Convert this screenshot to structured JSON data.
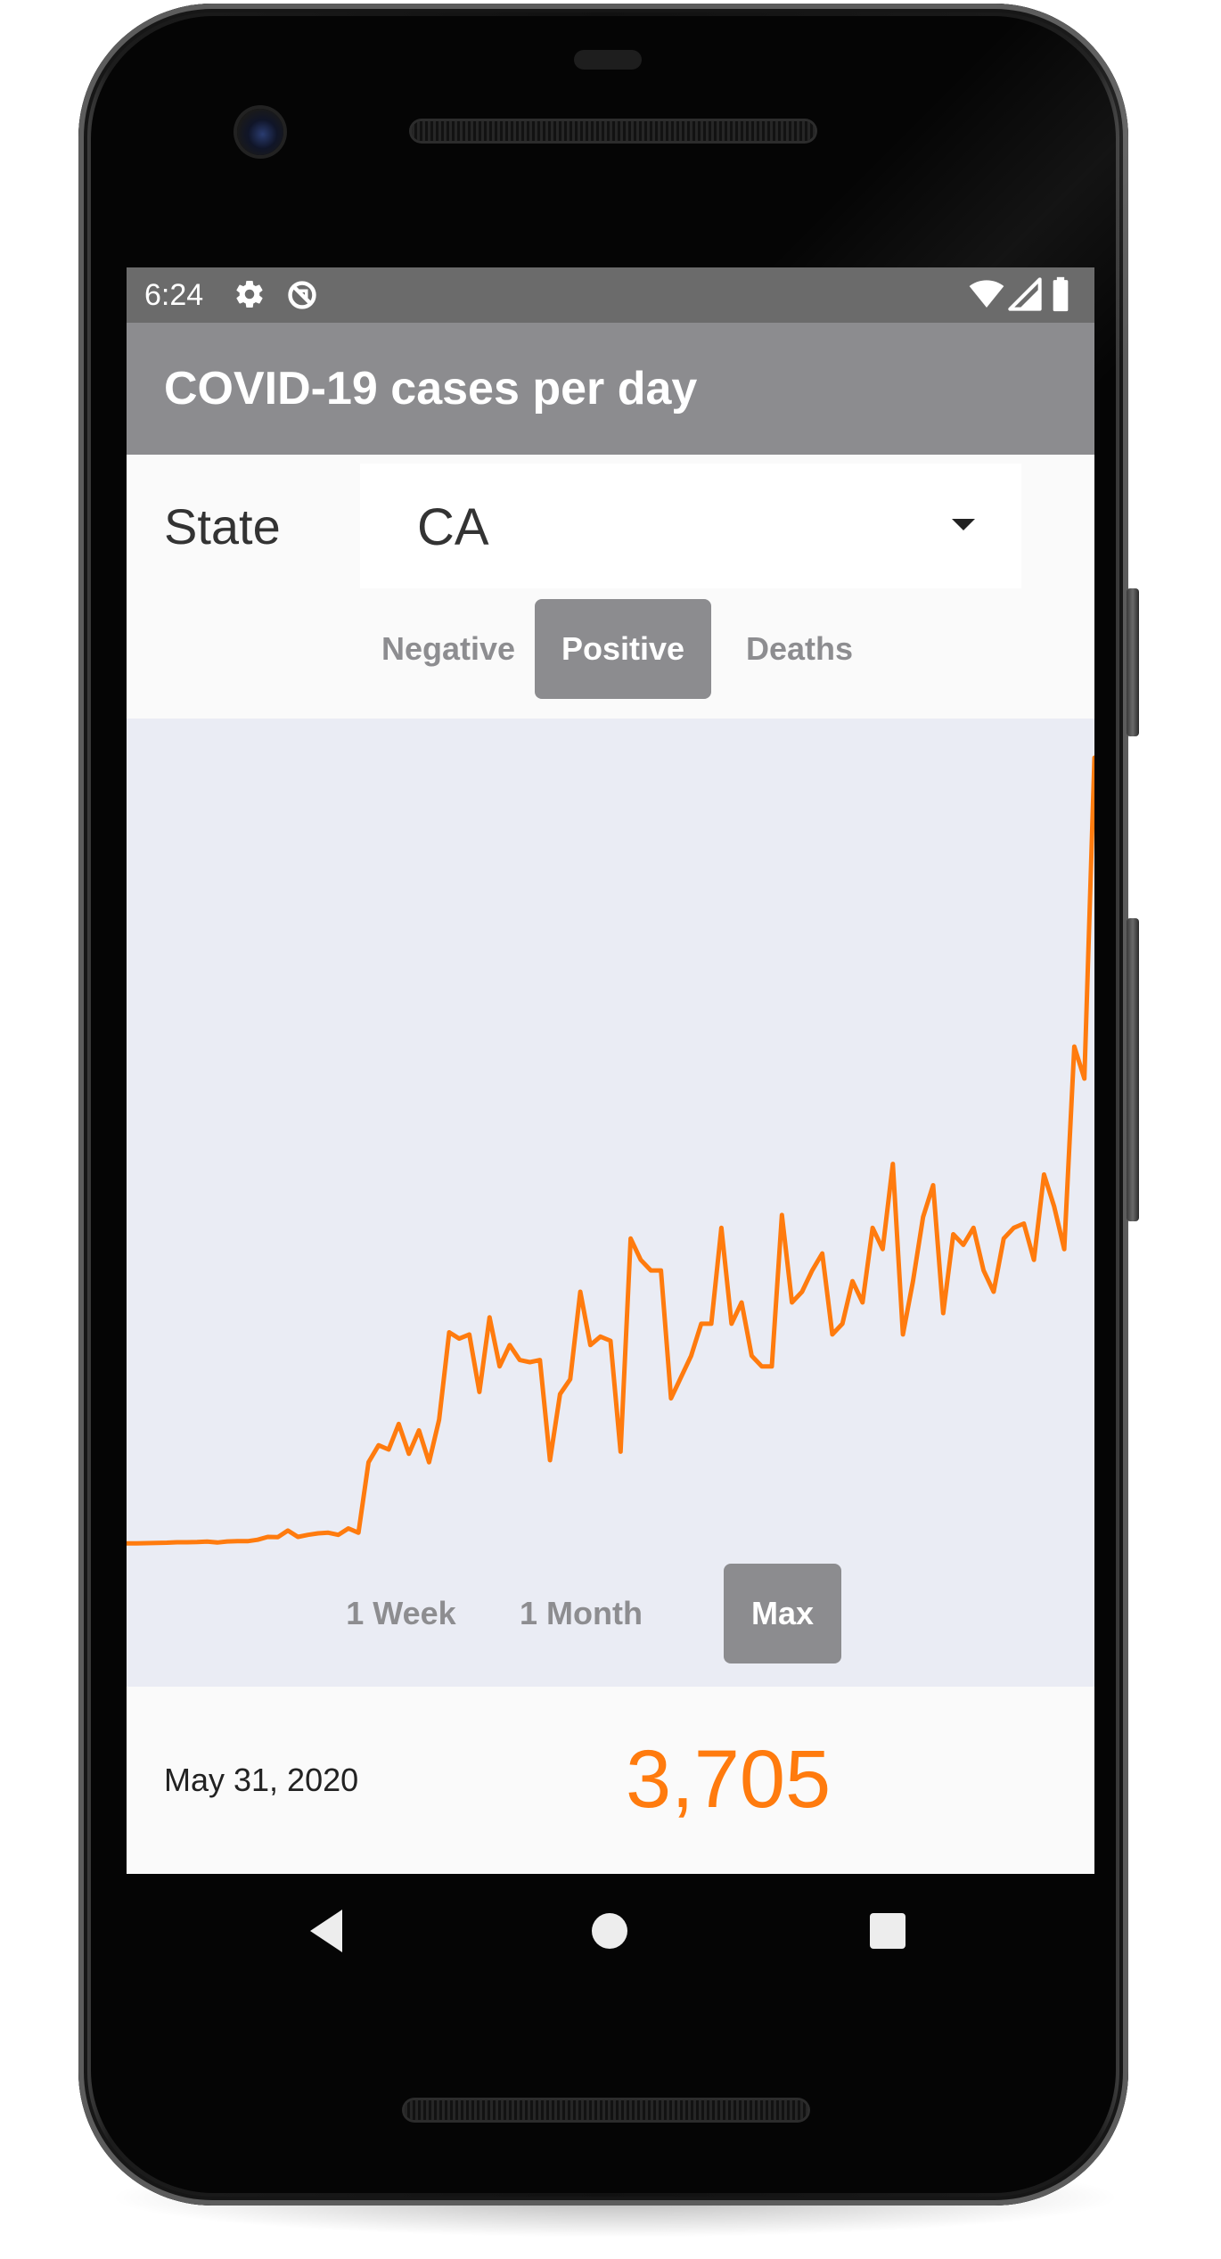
{
  "status_bar": {
    "time": "6:24",
    "left_icons": [
      "gear-icon",
      "no-sync-icon"
    ],
    "right_icons": [
      "wifi-icon",
      "signal-icon",
      "battery-icon"
    ]
  },
  "app_bar": {
    "title": "COVID-19 cases per day"
  },
  "state_selector": {
    "label": "State",
    "selected": "CA",
    "icon": "dropdown-arrow-icon"
  },
  "metric_tabs": {
    "items": [
      {
        "label": "Negative",
        "selected": false
      },
      {
        "label": "Positive",
        "selected": true
      },
      {
        "label": "Deaths",
        "selected": false
      }
    ]
  },
  "range_tabs": {
    "items": [
      {
        "label": "1 Week",
        "selected": false
      },
      {
        "label": "1 Month",
        "selected": false
      },
      {
        "label": "Max",
        "selected": true
      }
    ]
  },
  "footer": {
    "date": "May 31, 2020",
    "value": "3,705"
  },
  "colors": {
    "accent": "#ff7b0e",
    "toolbar": "#8c8c8f",
    "status_bar": "#6b6b6b",
    "chart_background": "#eaecf4"
  },
  "chart_data": {
    "type": "line",
    "series": [
      {
        "values": [
          20,
          20,
          21,
          22,
          23,
          25,
          25,
          26,
          28,
          24,
          29,
          30,
          30,
          37,
          50,
          49,
          80,
          50,
          60,
          67,
          70,
          60,
          90,
          70,
          400,
          480,
          460,
          580,
          440,
          550,
          400,
          600,
          1010,
          980,
          1000,
          730,
          1080,
          850,
          950,
          880,
          870,
          880,
          410,
          720,
          790,
          1200,
          950,
          990,
          970,
          450,
          1450,
          1350,
          1300,
          1300,
          700,
          800,
          900,
          1050,
          1050,
          1500,
          1050,
          1150,
          900,
          850,
          850,
          1560,
          1150,
          1200,
          1300,
          1380,
          1000,
          1050,
          1250,
          1150,
          1500,
          1400,
          1800,
          1000,
          1250,
          1550,
          1700,
          1100,
          1470,
          1420,
          1500,
          1300,
          1200,
          1450,
          1500,
          1520,
          1350,
          1750,
          1600,
          1400,
          2350,
          2200,
          3705
        ]
      }
    ],
    "xlabel": "",
    "ylabel": "",
    "grid": false,
    "legend": "none"
  }
}
